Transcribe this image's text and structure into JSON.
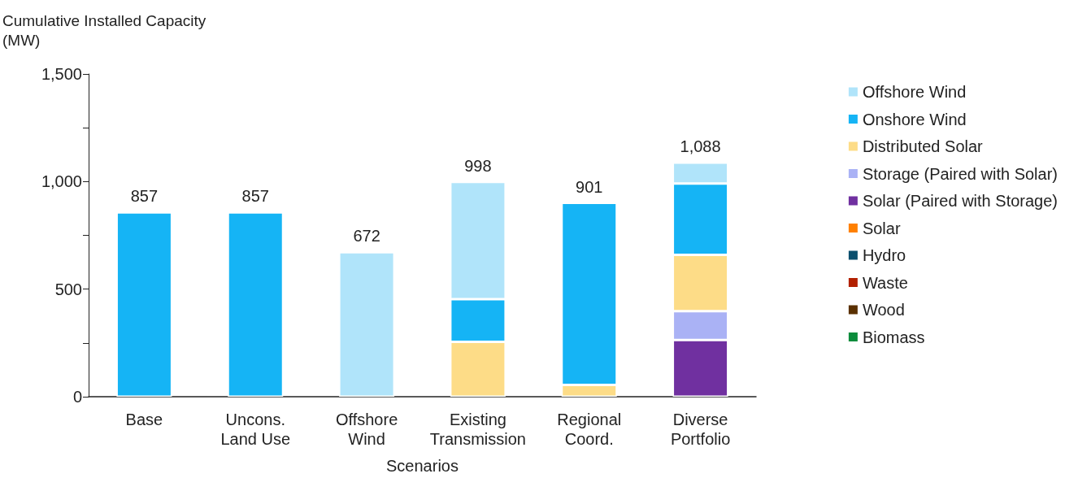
{
  "chart_data": {
    "type": "bar",
    "stacked": true,
    "ylabel": "Cumulative Installed Capacity\n(MW)",
    "xlabel": "Scenarios",
    "categories": [
      "Base",
      "Uncons.\nLand Use",
      "Offshore\nWind",
      "Existing\nTransmission",
      "Regional\nCoord.",
      "Diverse\nPortfolio"
    ],
    "series": [
      {
        "name": "Biomass",
        "color": "#0c8c3c",
        "values": [
          null,
          null,
          null,
          null,
          null,
          null
        ]
      },
      {
        "name": "Wood",
        "color": "#5a3000",
        "values": [
          null,
          null,
          null,
          null,
          null,
          null
        ]
      },
      {
        "name": "Waste",
        "color": "#b22000",
        "values": [
          null,
          null,
          null,
          null,
          null,
          null
        ]
      },
      {
        "name": "Hydro",
        "color": "#0a4f6e",
        "values": [
          null,
          null,
          null,
          null,
          null,
          null
        ]
      },
      {
        "name": "Solar",
        "color": "#ff8000",
        "values": [
          null,
          null,
          null,
          null,
          null,
          null
        ]
      },
      {
        "name": "Solar (Paired with Storage)",
        "color": "#7030a0",
        "values": [
          null,
          null,
          null,
          null,
          null,
          264
        ]
      },
      {
        "name": "Storage (Paired with Solar)",
        "color": "#aab2f5",
        "values": [
          null,
          null,
          null,
          null,
          null,
          134
        ]
      },
      {
        "name": "Distributed Solar",
        "color": "#fddc87",
        "values": [
          null,
          null,
          null,
          255,
          55,
          261
        ]
      },
      {
        "name": "Onshore Wind",
        "color": "#15b4f5",
        "values": [
          857,
          857,
          null,
          198,
          846,
          332
        ]
      },
      {
        "name": "Offshore Wind",
        "color": "#b0e4fa",
        "values": [
          null,
          null,
          672,
          545,
          null,
          97
        ]
      }
    ],
    "totals": [
      "857",
      "857",
      "672",
      "998",
      "901",
      "1,088"
    ],
    "ylim": [
      0,
      1500
    ],
    "yticks": [
      0,
      {
        "value": 250,
        "label": null
      },
      500,
      {
        "value": 750,
        "label": null
      },
      {
        "value": 1000,
        "label": "1,000"
      },
      {
        "value": 1250,
        "label": null
      },
      {
        "value": 1500,
        "label": "1,500"
      }
    ],
    "grid": false,
    "legend": "right"
  }
}
